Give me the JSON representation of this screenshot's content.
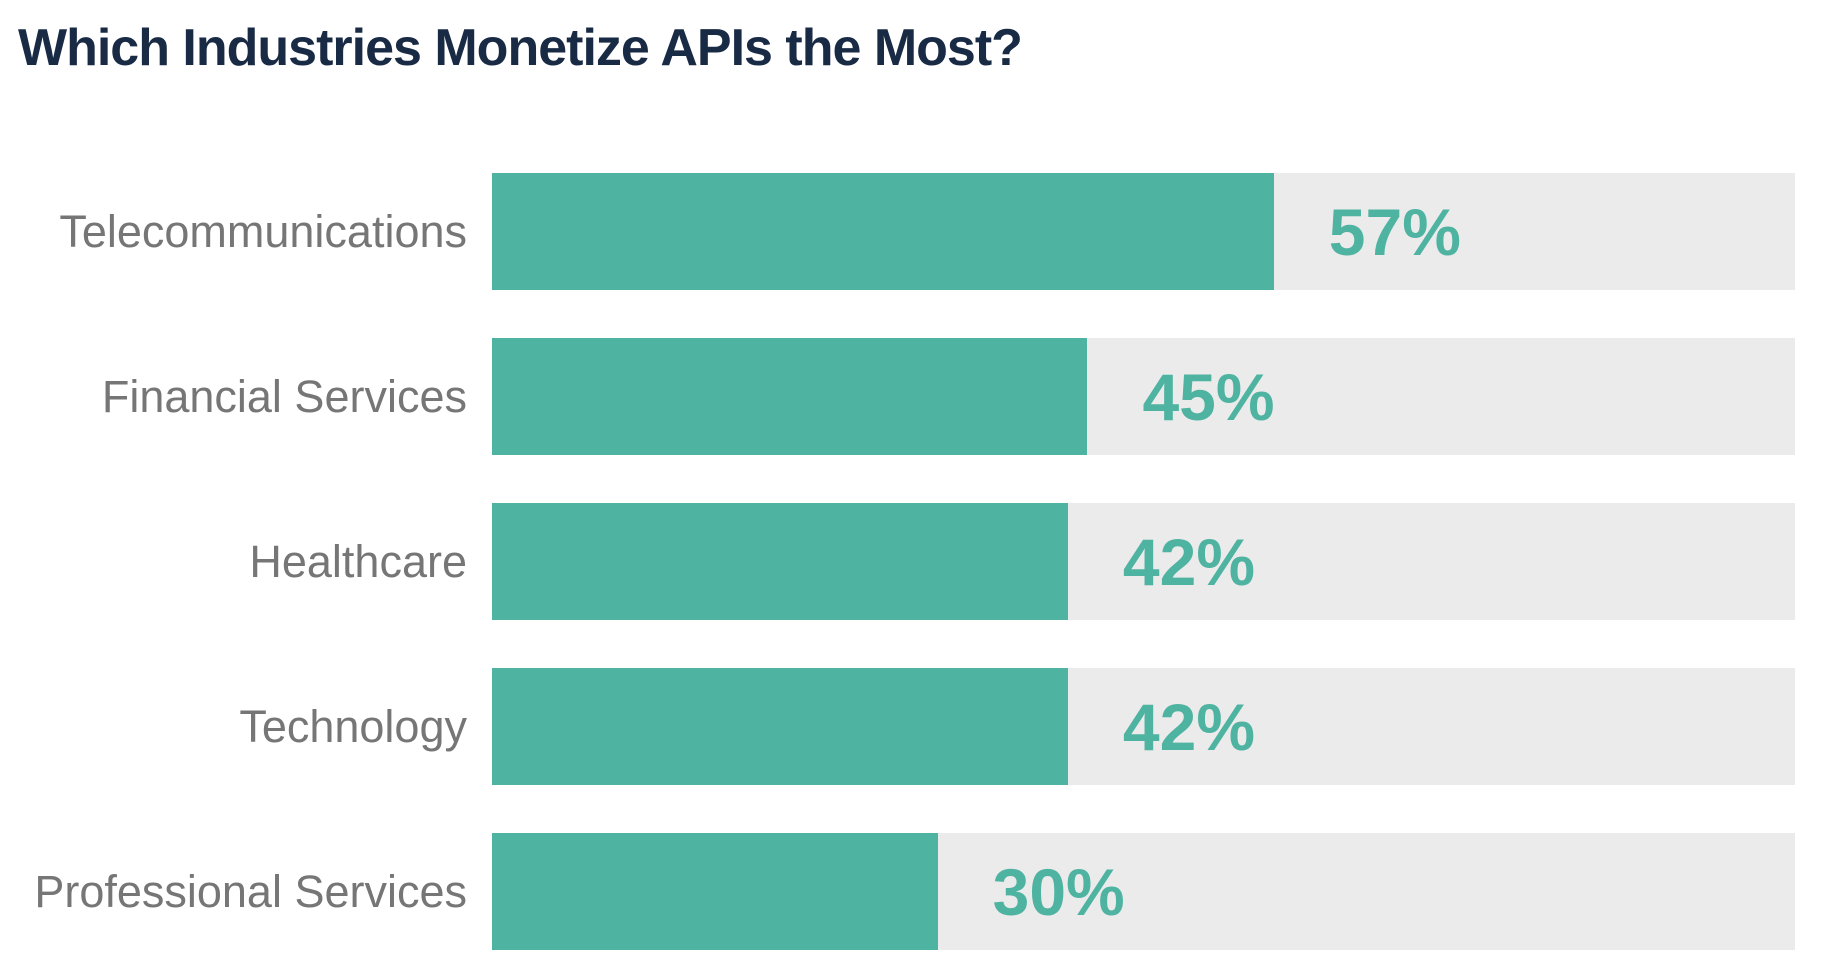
{
  "chart_data": {
    "type": "bar",
    "orientation": "horizontal",
    "title": "Which Industries Monetize APIs the Most?",
    "categories": [
      "Telecommunications",
      "Financial Services",
      "Healthcare",
      "Technology",
      "Professional Services"
    ],
    "values": [
      57,
      45,
      42,
      42,
      30
    ],
    "value_labels": [
      "57%",
      "45%",
      "42%",
      "42%",
      "30%"
    ],
    "visual_fill_pct_of_track": [
      60.0,
      45.7,
      44.2,
      44.2,
      34.2
    ],
    "xlabel": "",
    "ylabel": "",
    "grid": false,
    "legend": false,
    "value_label_position": "inside-track-right-of-fill",
    "colors": {
      "bar": "#4fb3a1",
      "track": "#ebebeb",
      "title": "#192a44",
      "category_label": "#767676",
      "background": "#ffffff"
    }
  }
}
